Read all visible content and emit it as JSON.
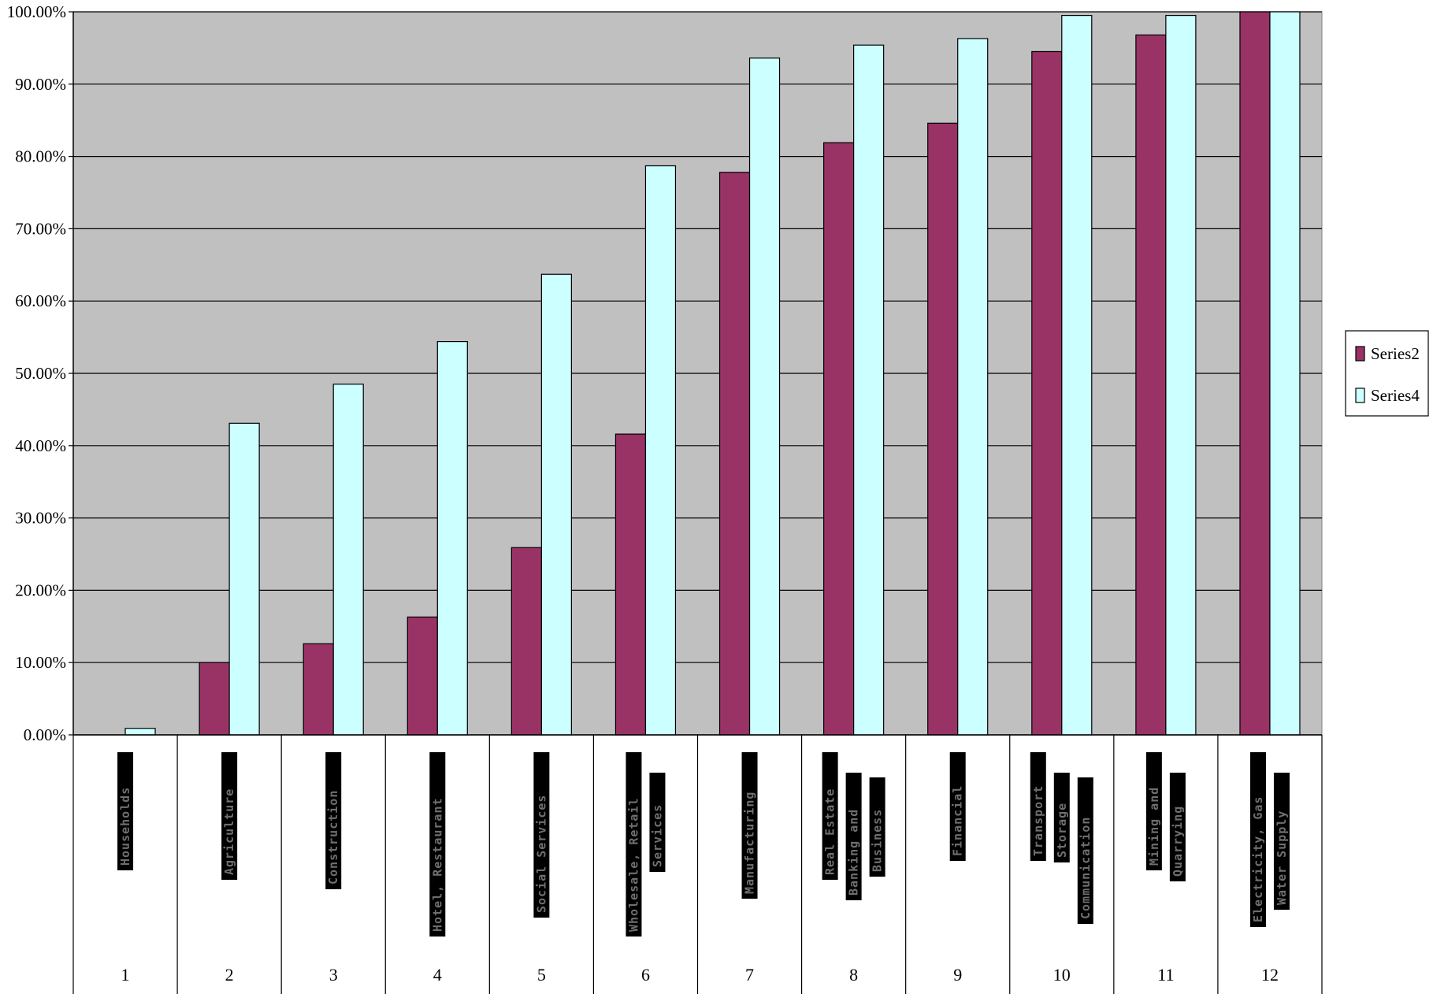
{
  "chart_data": {
    "type": "bar",
    "categories": [
      "1",
      "2",
      "3",
      "4",
      "5",
      "6",
      "7",
      "8",
      "9",
      "10",
      "11",
      "12"
    ],
    "y_tick_labels": [
      "0.00%",
      "10.00%",
      "20.00%",
      "30.00%",
      "40.00%",
      "50.00%",
      "60.00%",
      "70.00%",
      "80.00%",
      "90.00%",
      "100.00%"
    ],
    "ylim": [
      0,
      100
    ],
    "grid": true,
    "legend_position": "right",
    "series": [
      {
        "name": "Series2",
        "color": "#993366",
        "values": [
          0,
          10.0,
          12.6,
          16.3,
          25.9,
          41.6,
          77.8,
          81.9,
          84.6,
          94.5,
          96.8,
          100.0
        ]
      },
      {
        "name": "Series4",
        "color": "#ccffff",
        "values": [
          0.9,
          43.1,
          48.5,
          54.4,
          63.7,
          78.7,
          93.6,
          95.4,
          96.3,
          99.5,
          99.5,
          100.0
        ]
      }
    ],
    "category_text_labels": [
      [
        "Households"
      ],
      [
        "Agriculture"
      ],
      [
        "Construction"
      ],
      [
        "Hotel, Restaurant"
      ],
      [
        "Social Services"
      ],
      [
        "Wholesale, Retail",
        "Services"
      ],
      [
        "Manufacturing"
      ],
      [
        "Real Estate",
        "Banking and",
        "Business"
      ],
      [
        "Financial"
      ],
      [
        "Transport",
        "Storage",
        "Communication"
      ],
      [
        "Mining and",
        "Quarrying"
      ],
      [
        "Electricity, Gas",
        "Water Supply"
      ]
    ]
  }
}
